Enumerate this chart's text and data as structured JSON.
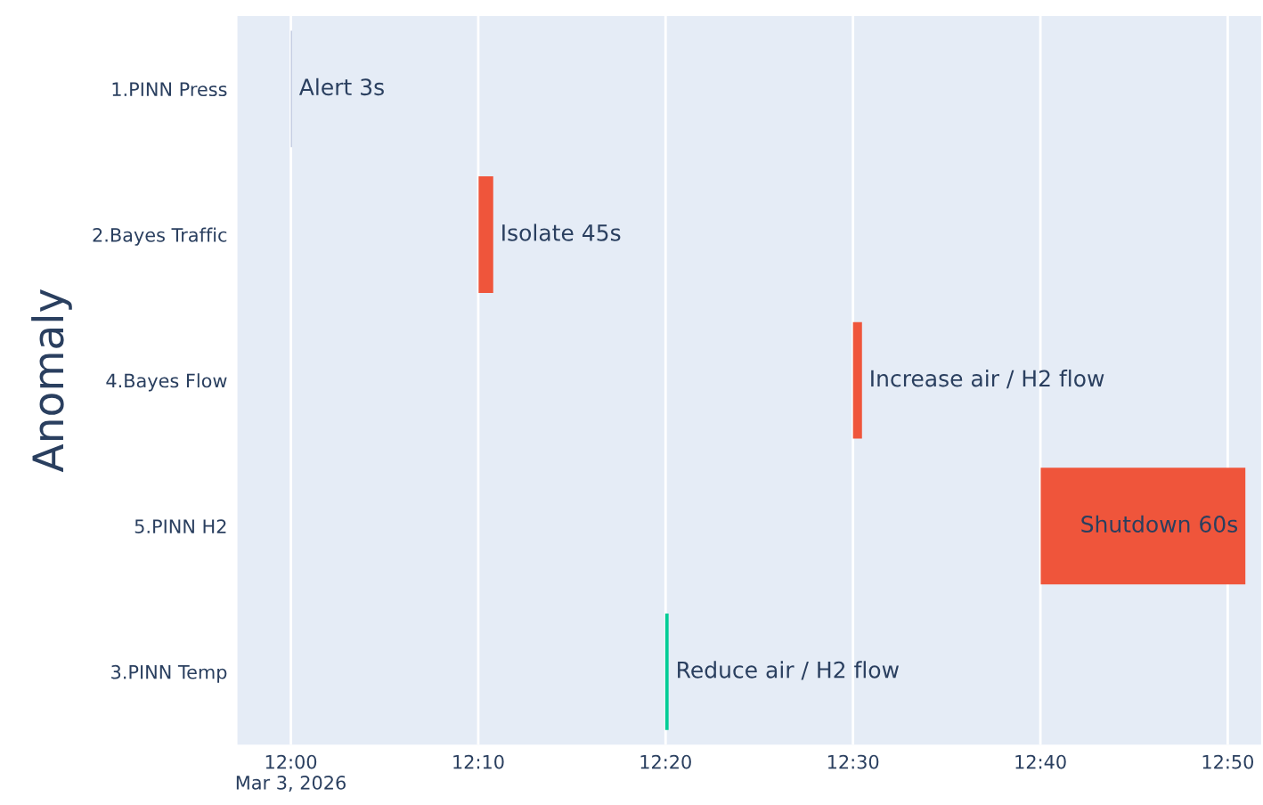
{
  "chart_data": {
    "type": "bar",
    "orientation": "horizontal",
    "ylabel": "Anomaly",
    "categories": [
      "1.PINN Press",
      "2.Bayes Traffic",
      "4.Bayes Flow",
      "5.PINN H2",
      "3.PINN Temp"
    ],
    "base": [
      12.0,
      12.167,
      12.5,
      12.667,
      12.333
    ],
    "values": [
      0.001,
      0.013,
      0.008,
      0.182,
      0.003
    ],
    "colors": [
      "#b8c4dc",
      "#ef553b",
      "#ef553b",
      "#ef553b",
      "#00cc96"
    ],
    "value_labels": [
      "Alert 3s",
      "Isolate 45s",
      "Increase air / H2 flow",
      "Shutdown 60s",
      "Reduce air / H2 flow"
    ],
    "xlim": [
      11.9525,
      12.863
    ],
    "xticks": [
      {
        "value": 12.0,
        "label": "12:00\nMar 3, 2026"
      },
      {
        "value": 12.1667,
        "label": "12:10"
      },
      {
        "value": 12.3333,
        "label": "12:20"
      },
      {
        "value": 12.5,
        "label": "12:30"
      },
      {
        "value": 12.6667,
        "label": "12:40"
      },
      {
        "value": 12.8333,
        "label": "12:50"
      }
    ],
    "grid": "x",
    "legend": false
  }
}
